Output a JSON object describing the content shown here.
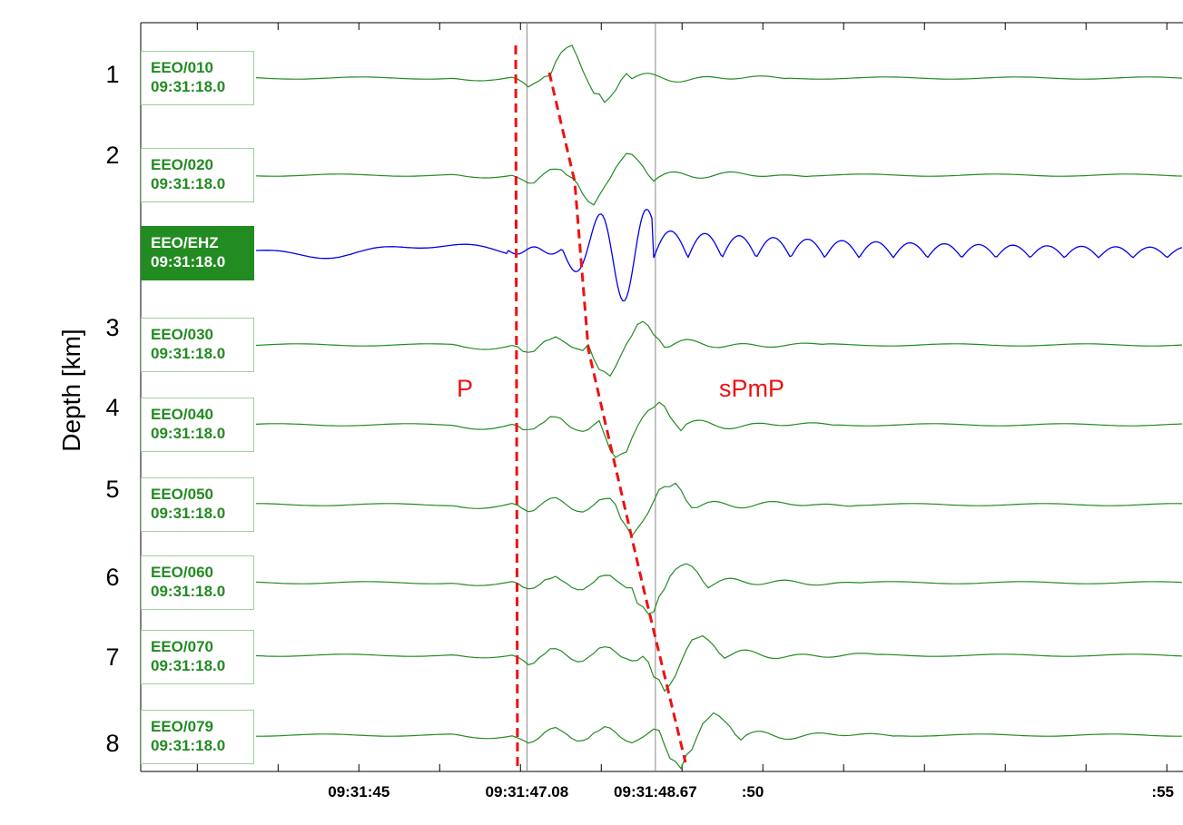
{
  "chart_data": {
    "type": "line",
    "ylabel": "Depth [km]",
    "x_tick_labels": [
      "09:31:45",
      "09:31:47.08",
      "09:31:48.67",
      ":50",
      ":55"
    ],
    "x_range": [
      "09:31:42.3",
      "09:31:55.2"
    ],
    "marker_times": [
      "09:31:47.08",
      "09:31:48.67"
    ],
    "depth_labels": [
      "1",
      "2",
      "3",
      "4",
      "5",
      "6",
      "7",
      "8"
    ],
    "phase_labels": [
      "P",
      "sPmP"
    ],
    "colors": {
      "trace": "#228b22",
      "reference_trace": "#0000ee",
      "phase_line": "#ee1111",
      "marker": "#888888"
    },
    "traces": [
      {
        "station": "EEO/010",
        "start": "09:31:18.0",
        "depth": "1",
        "highlighted": false
      },
      {
        "station": "EEO/020",
        "start": "09:31:18.0",
        "depth": "2",
        "highlighted": false
      },
      {
        "station": "EEO/EHZ",
        "start": "09:31:18.0",
        "depth": "",
        "highlighted": true
      },
      {
        "station": "EEO/030",
        "start": "09:31:18.0",
        "depth": "3",
        "highlighted": false
      },
      {
        "station": "EEO/040",
        "start": "09:31:18.0",
        "depth": "4",
        "highlighted": false
      },
      {
        "station": "EEO/050",
        "start": "09:31:18.0",
        "depth": "5",
        "highlighted": false
      },
      {
        "station": "EEO/060",
        "start": "09:31:18.0",
        "depth": "6",
        "highlighted": false
      },
      {
        "station": "EEO/070",
        "start": "09:31:18.0",
        "depth": "7",
        "highlighted": false
      },
      {
        "station": "EEO/079",
        "start": "09:31:18.0",
        "depth": "8",
        "highlighted": false
      }
    ]
  }
}
